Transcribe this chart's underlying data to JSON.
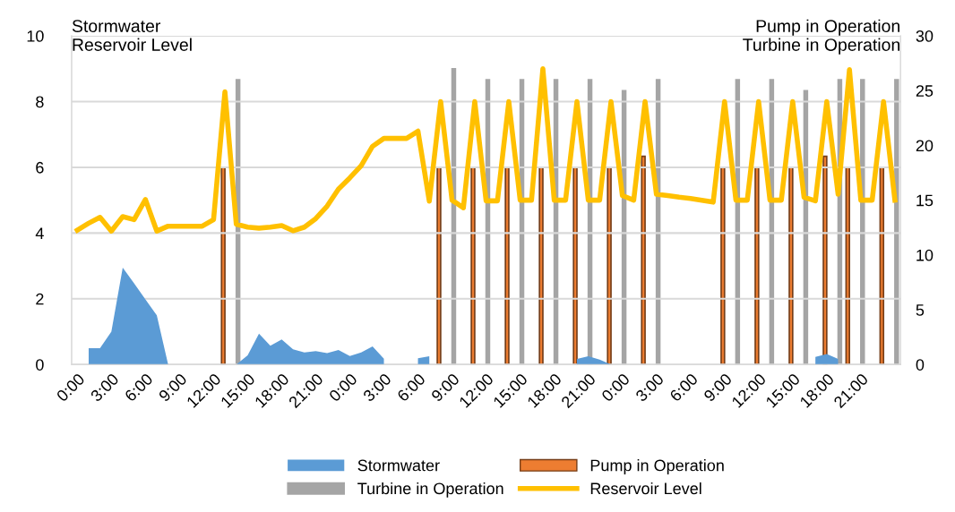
{
  "chart_data": {
    "type": "line",
    "ylabel": "Stormwater\nReservoir Level",
    "y2label": "Pump in Operation\nTurbine in Operation",
    "categories": [
      "0:00",
      null,
      null,
      "3:00",
      null,
      null,
      "6:00",
      null,
      null,
      "9:00",
      null,
      null,
      "12:00",
      null,
      null,
      "15:00",
      null,
      null,
      "18:00",
      null,
      null,
      "21:00",
      null,
      null,
      "0:00",
      null,
      null,
      "3:00",
      null,
      null,
      "6:00",
      null,
      null,
      "9:00",
      null,
      null,
      "12:00",
      null,
      null,
      "15:00",
      null,
      null,
      "18:00",
      null,
      null,
      "21:00",
      null,
      null,
      "0:00",
      null,
      null,
      "3:00",
      null,
      null,
      "6:00",
      null,
      null,
      "9:00",
      null,
      null,
      "12:00",
      null,
      null,
      "15:00",
      null,
      null,
      "18:00",
      null,
      null,
      "21:00",
      null,
      null,
      null
    ],
    "series": [
      {
        "name": "Stormwater",
        "type": "area",
        "color": "#5b9bd5",
        "values": [
          null,
          0.5,
          0.5,
          1.0,
          2.95,
          2.47,
          1.98,
          1.5,
          0,
          null,
          null,
          null,
          null,
          null,
          0,
          0.28,
          0.94,
          0.57,
          0.76,
          0.46,
          0.37,
          0.41,
          0.35,
          0.44,
          0.26,
          0.37,
          0.55,
          0.18,
          null,
          null,
          0.19,
          0.25,
          null,
          null,
          null,
          null,
          null,
          null,
          null,
          null,
          null,
          null,
          null,
          null,
          0.17,
          0.25,
          0.15,
          0,
          null,
          null,
          null,
          null,
          null,
          null,
          null,
          null,
          null,
          null,
          null,
          null,
          null,
          null,
          null,
          null,
          null,
          0.23,
          0.32,
          0.17,
          null,
          null,
          null,
          null,
          null
        ]
      },
      {
        "name": "Pump in Operation",
        "type": "bar",
        "axis": "y2",
        "color": "#ed7d31",
        "values": [
          null,
          null,
          null,
          null,
          null,
          null,
          null,
          null,
          null,
          null,
          null,
          null,
          null,
          18,
          null,
          null,
          null,
          null,
          null,
          null,
          null,
          null,
          null,
          null,
          null,
          null,
          null,
          null,
          null,
          null,
          null,
          null,
          18,
          null,
          null,
          18,
          null,
          null,
          18,
          null,
          null,
          18,
          null,
          null,
          18,
          null,
          null,
          18,
          null,
          null,
          19,
          null,
          null,
          null,
          null,
          null,
          null,
          18,
          null,
          null,
          18,
          null,
          null,
          18,
          null,
          null,
          19,
          null,
          18,
          null,
          null,
          18,
          null
        ]
      },
      {
        "name": "Turbine in Operation",
        "type": "bar",
        "axis": "y2",
        "color": "#a5a5a5",
        "values": [
          null,
          null,
          null,
          null,
          null,
          null,
          null,
          null,
          null,
          null,
          null,
          null,
          null,
          null,
          26,
          null,
          null,
          null,
          null,
          null,
          null,
          null,
          null,
          null,
          null,
          null,
          null,
          null,
          null,
          null,
          null,
          null,
          null,
          27,
          null,
          null,
          26,
          null,
          null,
          26,
          null,
          null,
          26,
          null,
          null,
          26,
          null,
          null,
          25,
          null,
          null,
          26,
          null,
          null,
          null,
          null,
          null,
          null,
          26,
          null,
          null,
          26,
          null,
          null,
          25,
          null,
          null,
          26,
          null,
          26,
          null,
          null,
          26
        ]
      },
      {
        "name": "Reservoir Level",
        "color": "#ffc000",
        "values": [
          4.09,
          4.3,
          4.48,
          4.06,
          4.5,
          4.41,
          5.02,
          4.06,
          4.21,
          4.21,
          4.21,
          4.21,
          4.41,
          8.3,
          4.27,
          4.18,
          4.15,
          4.18,
          4.23,
          4.07,
          4.18,
          4.44,
          4.82,
          5.34,
          5.68,
          6.05,
          6.64,
          6.88,
          6.88,
          6.88,
          7.1,
          4.97,
          8.0,
          5.0,
          4.77,
          8.0,
          4.98,
          4.98,
          8.0,
          5.0,
          5.0,
          9.0,
          5.0,
          5.0,
          8.0,
          5.0,
          5.0,
          8.0,
          5.14,
          5.0,
          8.0,
          5.18,
          5.14,
          5.09,
          5.05,
          5.0,
          4.94,
          8.0,
          5.0,
          5.0,
          8.0,
          5.0,
          5.0,
          8.0,
          5.09,
          4.98,
          8.0,
          5.18,
          8.97,
          5.0,
          5.0,
          8.0,
          5.0
        ]
      }
    ],
    "ylim": [
      0,
      10
    ],
    "yticks": [
      0,
      2,
      4,
      6,
      8,
      10
    ],
    "y2lim": [
      0,
      30
    ],
    "y2ticks": [
      0,
      5,
      10,
      15,
      20,
      25,
      30
    ],
    "grid": "y",
    "legend": "bottom",
    "marker": "none",
    "line_style": "solid"
  }
}
